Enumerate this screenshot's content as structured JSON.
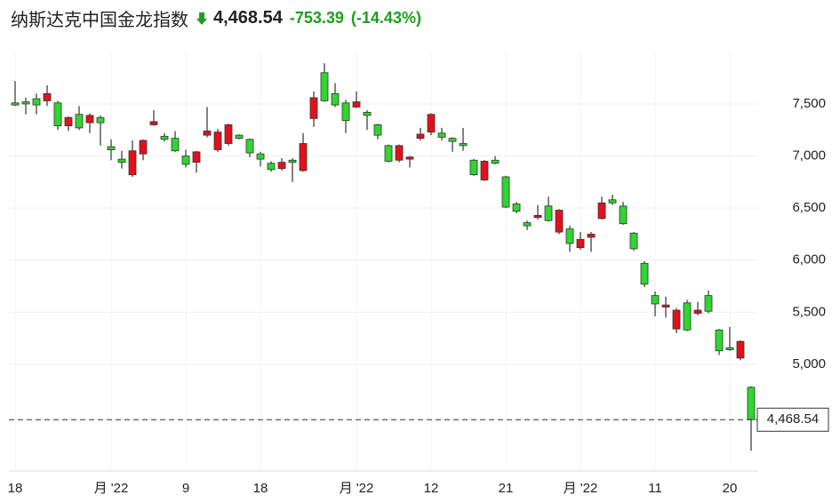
{
  "header": {
    "title": "纳斯达克中国金龙指数",
    "price": "4,468.54",
    "change": "-753.39",
    "change_pct": "(-14.43%)"
  },
  "chart_data": {
    "type": "candlestick",
    "categories": [
      "18",
      null,
      null,
      null,
      null,
      null,
      null,
      null,
      null,
      "月 '22",
      null,
      null,
      null,
      null,
      null,
      null,
      "9",
      null,
      null,
      null,
      null,
      null,
      null,
      "18",
      null,
      null,
      null,
      null,
      null,
      null,
      null,
      null,
      "月 '22",
      null,
      null,
      null,
      null,
      null,
      null,
      "12",
      null,
      null,
      null,
      null,
      null,
      null,
      "21",
      null,
      null,
      null,
      null,
      null,
      null,
      "月 '22",
      null,
      null,
      null,
      null,
      null,
      null,
      "11",
      null,
      null,
      null,
      null,
      null,
      null,
      "20",
      null,
      null
    ],
    "open": [
      7510,
      7520,
      7550,
      7530,
      7510,
      7290,
      7400,
      7320,
      7370,
      7090,
      6970,
      6820,
      7020,
      7300,
      7190,
      7170,
      7000,
      6940,
      7200,
      7060,
      7120,
      7200,
      7160,
      7020,
      6930,
      6880,
      6960,
      6860,
      7360,
      7800,
      7600,
      7510,
      7470,
      7420,
      7300,
      7100,
      6960,
      6970,
      7170,
      7230,
      7220,
      7170,
      7120,
      6960,
      6770,
      6960,
      6800,
      6540,
      6360,
      6410,
      6520,
      6270,
      6300,
      6120,
      6220,
      6400,
      6580,
      6520,
      6260,
      5970,
      5660,
      5550,
      5340,
      5590,
      5490,
      5660,
      5330,
      5160,
      5060,
      4780
    ],
    "high": [
      7720,
      7560,
      7600,
      7680,
      7530,
      7380,
      7480,
      7410,
      7390,
      7160,
      7050,
      7150,
      7160,
      7440,
      7220,
      7240,
      7060,
      7050,
      7470,
      7260,
      7310,
      7210,
      7170,
      7040,
      6950,
      6980,
      6980,
      7220,
      7620,
      7890,
      7700,
      7540,
      7620,
      7440,
      7310,
      7110,
      7110,
      7000,
      7270,
      7410,
      7270,
      7180,
      7270,
      6970,
      6960,
      7000,
      6810,
      6560,
      6380,
      6530,
      6610,
      6490,
      6330,
      6270,
      6270,
      6610,
      6630,
      6560,
      6270,
      5990,
      5700,
      5650,
      5540,
      5620,
      5600,
      5710,
      5340,
      5360,
      5230,
      4790
    ],
    "low": [
      7480,
      7400,
      7400,
      7480,
      7250,
      7240,
      7250,
      7220,
      7100,
      6960,
      6880,
      6800,
      6960,
      7290,
      7140,
      7040,
      6890,
      6840,
      7180,
      7040,
      7100,
      7160,
      6990,
      6900,
      6850,
      6860,
      6750,
      6850,
      7280,
      7520,
      7470,
      7220,
      7460,
      7250,
      7160,
      6940,
      6940,
      6890,
      7150,
      7200,
      7150,
      7040,
      7050,
      6810,
      6760,
      6920,
      6500,
      6450,
      6290,
      6390,
      6370,
      6250,
      6080,
      6100,
      6080,
      6390,
      6530,
      6340,
      6090,
      5740,
      5460,
      5450,
      5300,
      5320,
      5470,
      5490,
      5090,
      5130,
      5040,
      4170
    ],
    "close": [
      7490,
      7500,
      7490,
      7600,
      7290,
      7370,
      7270,
      7390,
      7320,
      7060,
      6940,
      7050,
      7150,
      7330,
      7160,
      7050,
      6920,
      7040,
      7240,
      7230,
      7300,
      7170,
      7030,
      6970,
      6870,
      6940,
      6940,
      7120,
      7560,
      7530,
      7490,
      7340,
      7520,
      7390,
      7200,
      6950,
      7100,
      6990,
      7210,
      7400,
      7180,
      7140,
      7100,
      6820,
      6950,
      6930,
      6510,
      6470,
      6330,
      6430,
      6380,
      6480,
      6160,
      6200,
      6250,
      6550,
      6550,
      6350,
      6110,
      5770,
      5580,
      5570,
      5520,
      5330,
      5520,
      5510,
      5130,
      5140,
      5220,
      4468.54
    ],
    "up_color": "#e3101c",
    "down_color": "#2ed62e",
    "ylim": [
      3976,
      8003
    ],
    "yticks": [
      {
        "value": 5000,
        "label": "5,000"
      },
      {
        "value": 5500,
        "label": "5,500"
      },
      {
        "value": 6000,
        "label": "6,000"
      },
      {
        "value": 6500,
        "label": "6,500"
      },
      {
        "value": 7000,
        "label": "7,000"
      },
      {
        "value": 7500,
        "label": "7,500"
      }
    ],
    "last_price": {
      "value": 4468.54,
      "label": "4,468.54"
    },
    "grid": true
  }
}
